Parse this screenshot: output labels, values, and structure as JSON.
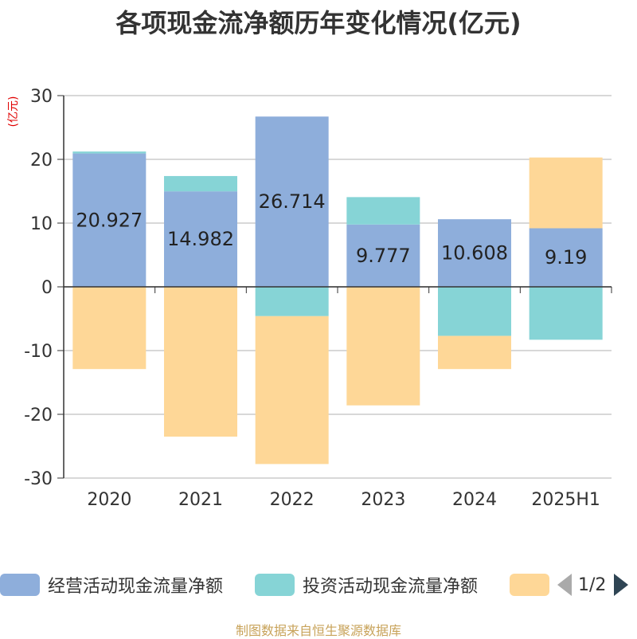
{
  "chart_data": {
    "type": "bar",
    "stacked": true,
    "title": "各项现金流净额历年变化情况(亿元)",
    "unit_label": "(亿元)",
    "categories": [
      "2020",
      "2021",
      "2022",
      "2023",
      "2024",
      "2025H1"
    ],
    "ylim": [
      -30,
      30
    ],
    "yticks": [
      30,
      20,
      10,
      0,
      -10,
      -20,
      -30
    ],
    "grid": true,
    "series": [
      {
        "name": "经营活动现金流量净额",
        "color": "#8eaedb",
        "values": [
          20.927,
          14.982,
          26.714,
          9.777,
          10.608,
          9.19
        ],
        "show_labels": true
      },
      {
        "name": "投资活动现金流量净额",
        "color": "#86d4d6",
        "values": [
          0.3,
          2.4,
          -4.6,
          4.3,
          -7.7,
          -8.3
        ]
      },
      {
        "name": "",
        "color": "#fed797",
        "values": [
          -12.9,
          -23.5,
          -23.2,
          -18.6,
          -5.2,
          11.1
        ]
      }
    ],
    "legend": {
      "position": "bottom",
      "page": "1/2"
    },
    "source": "制图数据来自恒生聚源数据库"
  }
}
